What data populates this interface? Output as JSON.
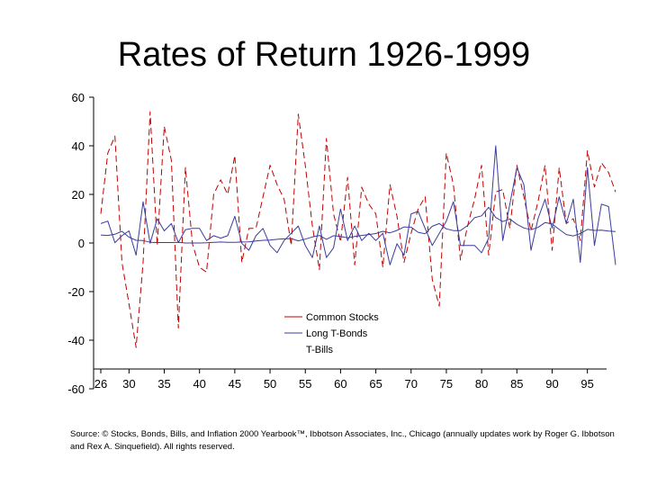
{
  "slide": {
    "title": "Rates of Return 1926-1999",
    "source": "Source: © Stocks, Bonds, Bills, and Inflation 2000 Yearbook™, Ibbotson Associates, Inc., Chicago (annually updates work by Roger G. Ibbotson and Rex A. Sinquefield). All rights reserved."
  },
  "chart_data": {
    "type": "line",
    "title": "Rates of Return 1926-1999",
    "xlabel": "",
    "ylabel": "",
    "xlim": [
      1926,
      1999
    ],
    "ylim": [
      -60,
      60
    ],
    "yticks": [
      60,
      40,
      20,
      0,
      -20,
      -40,
      -60
    ],
    "xticks": [
      26,
      30,
      35,
      40,
      45,
      50,
      55,
      60,
      65,
      70,
      75,
      80,
      85,
      90,
      95
    ],
    "grid": false,
    "legend_position": "lower-center",
    "x": [
      1926,
      1927,
      1928,
      1929,
      1930,
      1931,
      1932,
      1933,
      1934,
      1935,
      1936,
      1937,
      1938,
      1939,
      1940,
      1941,
      1942,
      1943,
      1944,
      1945,
      1946,
      1947,
      1948,
      1949,
      1950,
      1951,
      1952,
      1953,
      1954,
      1955,
      1956,
      1957,
      1958,
      1959,
      1960,
      1961,
      1962,
      1963,
      1964,
      1965,
      1966,
      1967,
      1968,
      1969,
      1970,
      1971,
      1972,
      1973,
      1974,
      1975,
      1976,
      1977,
      1978,
      1979,
      1980,
      1981,
      1982,
      1983,
      1984,
      1985,
      1986,
      1987,
      1988,
      1989,
      1990,
      1991,
      1992,
      1993,
      1994,
      1995,
      1996,
      1997,
      1998,
      1999
    ],
    "series": [
      {
        "name": "Common Stocks",
        "color": "#c00000",
        "dash": "dashed",
        "values": [
          12,
          37,
          44,
          -8,
          -25,
          -43,
          -8,
          54,
          -1,
          48,
          34,
          -35,
          31,
          -0.4,
          -10,
          -12,
          20,
          26,
          20,
          36,
          -8,
          6,
          6,
          19,
          32,
          24,
          18,
          -1,
          53,
          32,
          7,
          -11,
          43,
          12,
          0.5,
          27,
          -9,
          23,
          16,
          12,
          -10,
          24,
          11,
          -8,
          4,
          14,
          19,
          -15,
          -26,
          37,
          24,
          -7,
          7,
          18,
          32,
          -5,
          21,
          22,
          6,
          32,
          19,
          5,
          17,
          32,
          -3,
          31,
          8,
          10,
          1,
          38,
          23,
          33,
          29,
          21
        ]
      },
      {
        "name": "Long T-Bonds",
        "color": "#3b3b9e",
        "dash": "solid",
        "values": [
          8,
          9,
          0.1,
          3,
          5,
          -5,
          17,
          -0.1,
          10,
          5,
          8,
          0.2,
          5.5,
          6,
          6,
          1,
          3,
          2,
          3,
          11,
          -0.1,
          -3,
          3,
          6,
          -1,
          -4,
          1,
          4,
          7,
          -1,
          -6,
          7,
          -6,
          -2,
          14,
          1,
          7,
          1,
          4,
          1,
          4,
          -9,
          -0.3,
          -5,
          12,
          13,
          6,
          -1,
          4,
          9,
          17,
          -1,
          -1,
          -1,
          -4,
          2,
          40,
          1,
          16,
          31,
          24,
          -3,
          10,
          18,
          6,
          19,
          8,
          18,
          -8,
          31,
          -1,
          16,
          15,
          -9
        ]
      },
      {
        "name": "T-Bills",
        "color": "#3b3b9e",
        "dash": "solid",
        "values": [
          3.3,
          3.1,
          3.6,
          4.8,
          2.4,
          1.1,
          1,
          0.3,
          0.2,
          0.2,
          0.2,
          0.3,
          0,
          0,
          0,
          0.1,
          0.3,
          0.4,
          0.3,
          0.3,
          0.4,
          0.5,
          0.8,
          1.1,
          1.2,
          1.5,
          1.7,
          1.8,
          0.9,
          1.6,
          2.5,
          3.1,
          1.5,
          3,
          2.7,
          2.1,
          2.7,
          3.1,
          3.5,
          3.9,
          4.8,
          4.2,
          5.2,
          6.6,
          6.5,
          4.4,
          3.8,
          6.9,
          8,
          5.8,
          5.1,
          5.1,
          7.2,
          10.4,
          11.2,
          14.7,
          10.5,
          8.8,
          9.9,
          7.7,
          6.2,
          5.5,
          6.4,
          8.4,
          7.8,
          5.6,
          3.5,
          2.9,
          3.9,
          5.6,
          5.2,
          5.3,
          4.9,
          4.7
        ]
      }
    ]
  }
}
